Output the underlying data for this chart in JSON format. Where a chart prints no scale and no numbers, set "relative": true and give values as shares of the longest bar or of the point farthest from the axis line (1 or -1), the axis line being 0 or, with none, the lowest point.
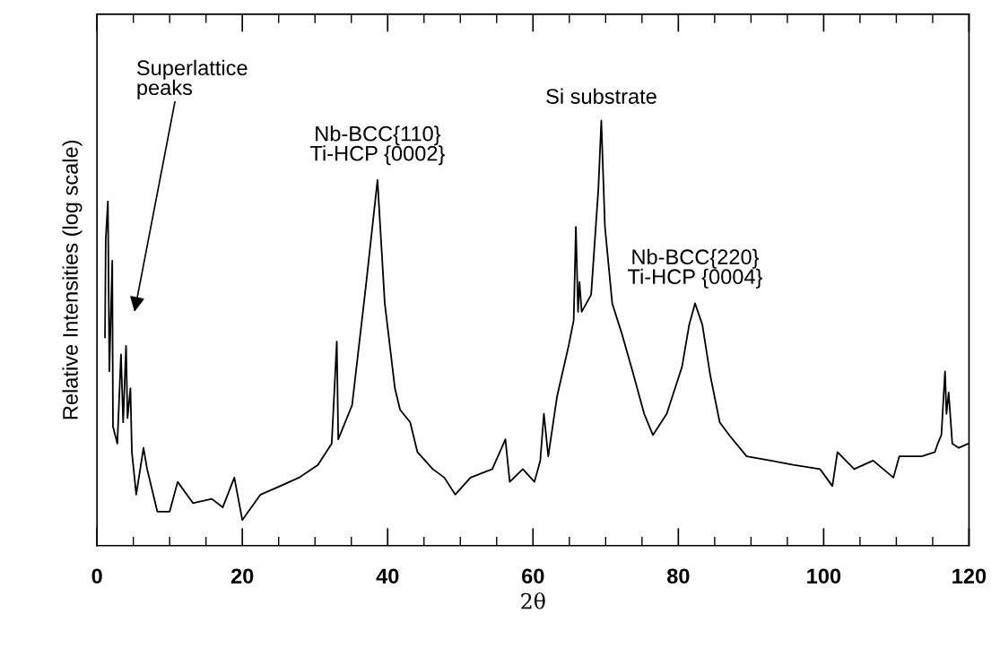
{
  "chart_data": {
    "type": "line",
    "relative": true,
    "xlabel": "2θ",
    "ylabel": "Relative Intensities (log scale)",
    "xlim": [
      0,
      120
    ],
    "xticks": [
      0,
      {
        "value": 5,
        "label": null
      },
      {
        "value": 10,
        "label": null
      },
      {
        "value": 15,
        "label": null
      },
      20,
      {
        "value": 25,
        "label": null
      },
      {
        "value": 30,
        "label": null
      },
      {
        "value": 35,
        "label": null
      },
      40,
      {
        "value": 45,
        "label": null
      },
      {
        "value": 50,
        "label": null
      },
      {
        "value": 55,
        "label": null
      },
      60,
      {
        "value": 65,
        "label": null
      },
      {
        "value": 70,
        "label": null
      },
      {
        "value": 75,
        "label": null
      },
      80,
      {
        "value": 85,
        "label": null
      },
      {
        "value": 90,
        "label": null
      },
      {
        "value": 95,
        "label": null
      },
      100,
      {
        "value": 105,
        "label": null
      },
      {
        "value": 110,
        "label": null
      },
      {
        "value": 115,
        "label": null
      },
      120
    ],
    "grid": false,
    "legend": false,
    "series": [
      {
        "color": "#000000",
        "x": [
          1.1,
          1.2,
          1.5,
          1.7,
          2.1,
          2.2,
          2.8,
          3.3,
          3.6,
          4.0,
          4.2,
          4.6,
          4.8,
          5.4,
          6.4,
          6.9,
          8.3,
          10.0,
          11.1,
          13.2,
          15.8,
          17.3,
          18.9,
          20.0,
          22.5,
          25.2,
          27.8,
          30.4,
          32.3,
          33.0,
          33.2,
          35.1,
          37.0,
          38.6,
          39.6,
          41.0,
          41.7,
          43.1,
          44.1,
          46.2,
          47.8,
          49.3,
          51.4,
          54.4,
          56.2,
          56.8,
          58.6,
          60.2,
          61.0,
          61.5,
          62.1,
          63.3,
          64.9,
          65.6,
          65.9,
          66.2,
          66.4,
          66.7,
          68.0,
          69.0,
          69.4,
          69.9,
          70.9,
          72.2,
          73.7,
          75.3,
          76.5,
          78.4,
          80.5,
          81.5,
          82.3,
          83.3,
          84.4,
          85.7,
          87.0,
          89.4,
          92.7,
          95.8,
          99.5,
          101.2,
          101.9,
          104.2,
          106.8,
          109.6,
          110.4,
          113.5,
          115.3,
          115.7,
          116.2,
          116.7,
          116.9,
          117.2,
          117.7,
          118.6,
          119.9
        ],
        "values": [
          0.49,
          0.72,
          0.81,
          0.41,
          0.67,
          0.28,
          0.24,
          0.45,
          0.29,
          0.47,
          0.3,
          0.37,
          0.22,
          0.12,
          0.23,
          0.18,
          0.08,
          0.08,
          0.15,
          0.1,
          0.11,
          0.09,
          0.16,
          0.06,
          0.12,
          0.14,
          0.16,
          0.19,
          0.24,
          0.48,
          0.25,
          0.33,
          0.61,
          0.86,
          0.57,
          0.37,
          0.32,
          0.29,
          0.22,
          0.18,
          0.16,
          0.12,
          0.16,
          0.18,
          0.25,
          0.15,
          0.18,
          0.15,
          0.2,
          0.31,
          0.21,
          0.35,
          0.47,
          0.53,
          0.75,
          0.55,
          0.62,
          0.55,
          0.59,
          0.84,
          1.0,
          0.75,
          0.57,
          0.5,
          0.41,
          0.31,
          0.26,
          0.31,
          0.42,
          0.52,
          0.57,
          0.52,
          0.4,
          0.29,
          0.26,
          0.21,
          0.2,
          0.19,
          0.18,
          0.14,
          0.22,
          0.18,
          0.2,
          0.16,
          0.21,
          0.21,
          0.22,
          0.24,
          0.26,
          0.41,
          0.31,
          0.36,
          0.24,
          0.23,
          0.24
        ]
      }
    ],
    "annotations": [
      "Superlattice\npeaks",
      {
        "text": "Nb-BCC{110}\nTi-HCP {0002}",
        "x": 38.6,
        "y": 0.86
      },
      {
        "text": "Si substrate",
        "x": 69.4,
        "y": 1.0
      },
      {
        "text": "Nb-BCC{220}\nTi-HCP {0004}",
        "x": 82.3,
        "y": 0.57
      }
    ]
  }
}
